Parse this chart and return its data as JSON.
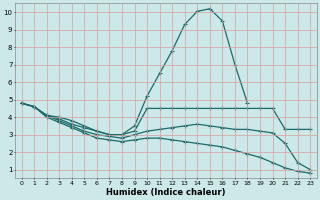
{
  "title": "",
  "xlabel": "Humidex (Indice chaleur)",
  "bg_color": "#cce8e8",
  "line_color": "#1a6b6b",
  "grid_color_h": "#c8b8b8",
  "grid_color_v": "#c8b8b8",
  "xlim": [
    -0.5,
    23.5
  ],
  "ylim": [
    0.5,
    10.5
  ],
  "xticks": [
    0,
    1,
    2,
    3,
    4,
    5,
    6,
    7,
    8,
    9,
    10,
    11,
    12,
    13,
    14,
    15,
    16,
    17,
    18,
    19,
    20,
    21,
    22,
    23
  ],
  "yticks": [
    1,
    2,
    3,
    4,
    5,
    6,
    7,
    8,
    9,
    10
  ],
  "lines": [
    {
      "x": [
        0,
        1,
        2,
        3,
        4,
        5,
        6,
        7,
        8,
        9,
        10,
        11,
        12,
        13,
        14,
        15,
        16,
        17,
        18
      ],
      "y": [
        4.8,
        4.6,
        4.1,
        4.0,
        3.8,
        3.5,
        3.2,
        3.0,
        3.0,
        3.5,
        5.2,
        6.5,
        7.8,
        9.3,
        10.05,
        10.2,
        9.5,
        7.0,
        4.8
      ]
    },
    {
      "x": [
        0,
        1,
        2,
        3,
        4,
        5,
        6,
        7,
        8,
        9,
        10,
        11,
        12,
        13,
        14,
        15,
        16,
        17,
        18,
        19,
        20,
        21,
        22,
        23
      ],
      "y": [
        4.8,
        4.6,
        4.1,
        3.9,
        3.6,
        3.4,
        3.2,
        3.0,
        3.0,
        3.2,
        4.5,
        4.5,
        4.5,
        4.5,
        4.5,
        4.5,
        4.5,
        4.5,
        4.5,
        4.5,
        4.5,
        3.3,
        3.3,
        3.3
      ]
    },
    {
      "x": [
        0,
        1,
        2,
        3,
        4,
        5,
        6,
        7,
        8,
        9,
        10,
        11,
        12,
        13,
        14,
        15,
        16,
        17,
        18,
        19,
        20,
        21,
        22,
        23
      ],
      "y": [
        4.8,
        4.6,
        4.1,
        3.8,
        3.5,
        3.2,
        3.0,
        2.9,
        2.8,
        3.0,
        3.2,
        3.3,
        3.4,
        3.5,
        3.6,
        3.5,
        3.4,
        3.3,
        3.3,
        3.2,
        3.1,
        2.5,
        1.4,
        1.0
      ]
    },
    {
      "x": [
        0,
        1,
        2,
        3,
        4,
        5,
        6,
        7,
        8,
        9,
        10,
        11,
        12,
        13,
        14,
        15,
        16,
        17,
        18,
        19,
        20,
        21,
        22,
        23
      ],
      "y": [
        4.8,
        4.6,
        4.0,
        3.7,
        3.4,
        3.1,
        2.8,
        2.7,
        2.6,
        2.7,
        2.8,
        2.8,
        2.7,
        2.6,
        2.5,
        2.4,
        2.3,
        2.1,
        1.9,
        1.7,
        1.4,
        1.1,
        0.9,
        0.8
      ]
    }
  ]
}
